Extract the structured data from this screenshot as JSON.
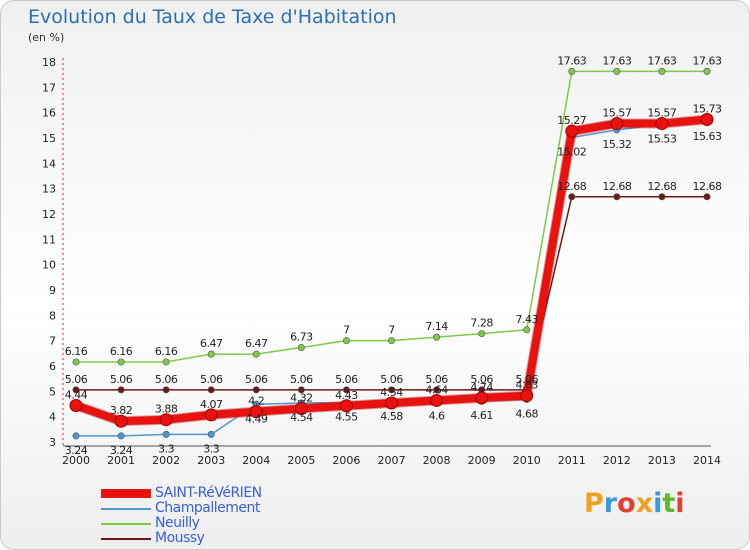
{
  "page": {
    "title": "Evolution du Taux de Taxe d'Habitation",
    "unit": "(en %)"
  },
  "logo": {
    "text": "Proxiti",
    "letter_colors": [
      "#f0a020",
      "#3a9ad9",
      "#e04030",
      "#f0a020",
      "#3a9ad9",
      "#5cb830",
      "#e04030"
    ]
  },
  "chart_data": {
    "type": "line",
    "title": "Evolution du Taux de Taxe d'Habitation",
    "ylabel": "(en %)",
    "xlabel": "",
    "x": [
      "2000",
      "2001",
      "2002",
      "2003",
      "2004",
      "2005",
      "2006",
      "2007",
      "2008",
      "2009",
      "2010",
      "2011",
      "2012",
      "2013",
      "2014"
    ],
    "ylim": [
      3,
      18
    ],
    "yticks": [
      3,
      4,
      5,
      6,
      7,
      8,
      9,
      10,
      11,
      12,
      13,
      14,
      15,
      16,
      17,
      18
    ],
    "grid": false,
    "legend": "bottom-left",
    "series": [
      {
        "name": "SAINT-RéVéRIEN",
        "color": "#e8130f",
        "values": [
          4.44,
          3.82,
          3.88,
          4.07,
          4.2,
          4.32,
          4.43,
          4.54,
          4.64,
          4.74,
          4.83,
          15.27,
          15.57,
          15.57,
          15.73
        ],
        "labels": [
          "4.44",
          "3.82",
          "3.88",
          "4.07",
          "4.2",
          "4.32",
          "4.43",
          "4.54",
          "4.64",
          "4.74",
          "4.83",
          "15.27",
          "15.57",
          "15.57",
          "15.73"
        ]
      },
      {
        "name": "Champallement",
        "color": "#4f97cf",
        "values": [
          3.24,
          3.24,
          3.3,
          3.3,
          4.49,
          4.54,
          4.55,
          4.58,
          4.6,
          4.61,
          4.68,
          15.02,
          15.32,
          15.53,
          15.63
        ],
        "labels": [
          "3.24",
          "3.24",
          "3.3",
          "3.3",
          "4.49",
          "4.54",
          "4.55",
          "4.58",
          "4.6",
          "4.61",
          "4.68",
          "15.02",
          "15.32",
          "15.53",
          "15.63"
        ]
      },
      {
        "name": "Neuilly",
        "color": "#7dc94b",
        "values": [
          6.16,
          6.16,
          6.16,
          6.47,
          6.47,
          6.73,
          7.0,
          7.0,
          7.14,
          7.28,
          7.43,
          17.63,
          17.63,
          17.63,
          17.63
        ],
        "labels": [
          "6.16",
          "6.16",
          "6.16",
          "6.47",
          "6.47",
          "6.73",
          "7",
          "7",
          "7.14",
          "7.28",
          "7.43",
          "17.63",
          "17.63",
          "17.63",
          "17.63"
        ]
      },
      {
        "name": "Moussy",
        "color": "#6b1a1a",
        "values": [
          5.06,
          5.06,
          5.06,
          5.06,
          5.06,
          5.06,
          5.06,
          5.06,
          5.06,
          5.06,
          5.06,
          12.68,
          12.68,
          12.68,
          12.68
        ],
        "labels": [
          "5.06",
          "5.06",
          "5.06",
          "5.06",
          "5.06",
          "5.06",
          "5.06",
          "5.06",
          "5.06",
          "5.06",
          "5.06",
          "12.68",
          "12.68",
          "12.68",
          "12.68"
        ]
      }
    ]
  }
}
